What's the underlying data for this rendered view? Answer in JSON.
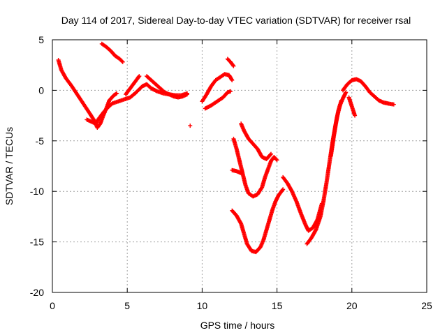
{
  "chart_data": {
    "type": "scatter",
    "title": "Day 114 of 2017, Sidereal Day-to-day VTEC variation (SDTVAR) for receiver rsal",
    "xlabel": "GPS time / hours",
    "ylabel": "SDTVAR / TECUs",
    "xlim": [
      0,
      25
    ],
    "ylim": [
      -20,
      5
    ],
    "xticks": [
      0,
      5,
      10,
      15,
      20,
      25
    ],
    "yticks": [
      -20,
      -15,
      -10,
      -5,
      0,
      5
    ],
    "xtick_labels": [
      "0",
      "5",
      "10",
      "15",
      "20",
      "25"
    ],
    "ytick_labels": [
      "-20",
      "-15",
      "-10",
      "-5",
      "0",
      "5"
    ],
    "grid": true,
    "legend": "none",
    "marker": "plus",
    "color": "#ff0000",
    "series": [
      {
        "points": [
          [
            0.4,
            3.0
          ],
          [
            0.6,
            2.0
          ],
          [
            0.9,
            1.2
          ],
          [
            1.3,
            0.4
          ],
          [
            1.7,
            -0.5
          ],
          [
            2.1,
            -1.4
          ],
          [
            2.5,
            -2.3
          ],
          [
            2.8,
            -3.0
          ],
          [
            3.0,
            -3.7
          ],
          [
            3.2,
            -3.3
          ],
          [
            3.4,
            -2.5
          ],
          [
            3.6,
            -1.8
          ],
          [
            3.8,
            -1.0
          ],
          [
            4.1,
            -0.5
          ],
          [
            4.3,
            -0.3
          ]
        ]
      },
      {
        "points": [
          [
            2.3,
            -2.9
          ],
          [
            2.6,
            -3.1
          ],
          [
            2.9,
            -3.3
          ],
          [
            3.1,
            -2.8
          ],
          [
            3.4,
            -2.2
          ],
          [
            3.7,
            -1.7
          ],
          [
            4.0,
            -1.3
          ],
          [
            4.4,
            -1.1
          ],
          [
            4.8,
            -0.9
          ],
          [
            5.2,
            -0.7
          ],
          [
            5.6,
            -0.2
          ],
          [
            6.0,
            0.4
          ],
          [
            6.3,
            0.6
          ],
          [
            6.6,
            0.2
          ],
          [
            7.0,
            -0.1
          ],
          [
            7.4,
            -0.3
          ],
          [
            7.8,
            -0.4
          ],
          [
            8.2,
            -0.5
          ],
          [
            8.6,
            -0.5
          ],
          [
            9.0,
            -0.3
          ]
        ]
      },
      {
        "points": [
          [
            3.3,
            4.6
          ],
          [
            3.6,
            4.3
          ],
          [
            3.9,
            3.9
          ],
          [
            4.2,
            3.4
          ],
          [
            4.5,
            3.1
          ],
          [
            4.7,
            2.8
          ]
        ]
      },
      {
        "points": [
          [
            4.9,
            -0.4
          ],
          [
            5.1,
            0.0
          ],
          [
            5.3,
            0.4
          ],
          [
            5.5,
            0.8
          ],
          [
            5.7,
            1.2
          ],
          [
            5.8,
            1.4
          ]
        ]
      },
      {
        "points": [
          [
            6.3,
            1.4
          ],
          [
            6.6,
            1.0
          ],
          [
            6.9,
            0.6
          ],
          [
            7.2,
            0.2
          ],
          [
            7.5,
            -0.2
          ],
          [
            7.8,
            -0.4
          ],
          [
            8.1,
            -0.6
          ],
          [
            8.4,
            -0.7
          ],
          [
            8.7,
            -0.6
          ],
          [
            9.0,
            -0.4
          ]
        ]
      },
      {
        "points": [
          [
            9.2,
            -3.5
          ]
        ]
      },
      {
        "points": [
          [
            10.0,
            -1.1
          ],
          [
            10.3,
            -0.4
          ],
          [
            10.6,
            0.4
          ],
          [
            10.9,
            1.0
          ],
          [
            11.2,
            1.3
          ],
          [
            11.5,
            1.6
          ],
          [
            11.8,
            1.5
          ],
          [
            12.0,
            1.0
          ]
        ]
      },
      {
        "points": [
          [
            10.2,
            -1.8
          ],
          [
            10.6,
            -1.5
          ],
          [
            11.0,
            -1.1
          ],
          [
            11.4,
            -0.7
          ],
          [
            11.7,
            -0.2
          ],
          [
            11.9,
            -0.1
          ]
        ]
      },
      {
        "points": [
          [
            11.7,
            3.1
          ],
          [
            11.9,
            2.8
          ],
          [
            12.1,
            2.4
          ]
        ]
      },
      {
        "points": [
          [
            12.1,
            -4.8
          ],
          [
            12.3,
            -5.8
          ],
          [
            12.5,
            -7.0
          ],
          [
            12.7,
            -8.2
          ],
          [
            12.9,
            -9.4
          ],
          [
            13.1,
            -10.2
          ],
          [
            13.4,
            -10.5
          ],
          [
            13.7,
            -10.3
          ],
          [
            14.0,
            -9.6
          ],
          [
            14.2,
            -8.6
          ],
          [
            14.4,
            -7.8
          ],
          [
            14.6,
            -7.0
          ],
          [
            14.8,
            -6.6
          ],
          [
            15.0,
            -6.9
          ]
        ]
      },
      {
        "points": [
          [
            12.6,
            -3.3
          ],
          [
            12.8,
            -4.0
          ],
          [
            13.1,
            -4.8
          ],
          [
            13.4,
            -5.3
          ],
          [
            13.7,
            -5.8
          ],
          [
            14.0,
            -6.6
          ],
          [
            14.3,
            -6.8
          ],
          [
            14.6,
            -6.3
          ]
        ]
      },
      {
        "points": [
          [
            12.0,
            -7.9
          ],
          [
            12.3,
            -8.0
          ],
          [
            12.6,
            -8.2
          ]
        ]
      },
      {
        "points": [
          [
            12.0,
            -11.9
          ],
          [
            12.3,
            -12.4
          ],
          [
            12.6,
            -13.2
          ],
          [
            12.8,
            -14.2
          ],
          [
            13.0,
            -15.2
          ],
          [
            13.3,
            -15.9
          ],
          [
            13.6,
            -16.0
          ],
          [
            13.9,
            -15.5
          ],
          [
            14.1,
            -14.8
          ],
          [
            14.3,
            -13.8
          ],
          [
            14.5,
            -12.8
          ],
          [
            14.7,
            -11.8
          ],
          [
            14.9,
            -11.0
          ],
          [
            15.1,
            -10.4
          ],
          [
            15.3,
            -10.0
          ],
          [
            15.4,
            -9.8
          ]
        ]
      },
      {
        "points": [
          [
            15.4,
            -8.6
          ],
          [
            15.7,
            -9.2
          ],
          [
            16.0,
            -10.0
          ],
          [
            16.3,
            -11.0
          ],
          [
            16.6,
            -12.2
          ],
          [
            16.9,
            -13.3
          ],
          [
            17.1,
            -13.9
          ],
          [
            17.4,
            -13.6
          ],
          [
            17.7,
            -12.8
          ],
          [
            18.0,
            -11.2
          ]
        ]
      },
      {
        "points": [
          [
            17.0,
            -15.2
          ],
          [
            17.3,
            -14.6
          ],
          [
            17.6,
            -13.8
          ],
          [
            17.9,
            -12.5
          ],
          [
            18.1,
            -11.0
          ],
          [
            18.3,
            -9.2
          ],
          [
            18.5,
            -7.2
          ],
          [
            18.7,
            -5.2
          ],
          [
            18.9,
            -3.5
          ],
          [
            19.1,
            -2.0
          ],
          [
            19.3,
            -1.0
          ]
        ]
      },
      {
        "points": [
          [
            18.6,
            -6.5
          ],
          [
            18.8,
            -4.5
          ],
          [
            19.0,
            -2.7
          ],
          [
            19.2,
            -1.5
          ],
          [
            19.4,
            -0.8
          ],
          [
            19.6,
            -0.2
          ]
        ]
      },
      {
        "points": [
          [
            19.4,
            0.0
          ],
          [
            19.7,
            0.6
          ],
          [
            20.0,
            1.0
          ],
          [
            20.3,
            1.1
          ],
          [
            20.6,
            0.9
          ],
          [
            20.9,
            0.4
          ],
          [
            21.2,
            -0.2
          ],
          [
            21.5,
            -0.6
          ],
          [
            21.8,
            -1.0
          ],
          [
            22.1,
            -1.2
          ],
          [
            22.4,
            -1.3
          ],
          [
            22.8,
            -1.4
          ]
        ]
      },
      {
        "points": [
          [
            19.8,
            -0.7
          ],
          [
            20.0,
            -1.6
          ],
          [
            20.2,
            -2.5
          ]
        ]
      }
    ]
  }
}
